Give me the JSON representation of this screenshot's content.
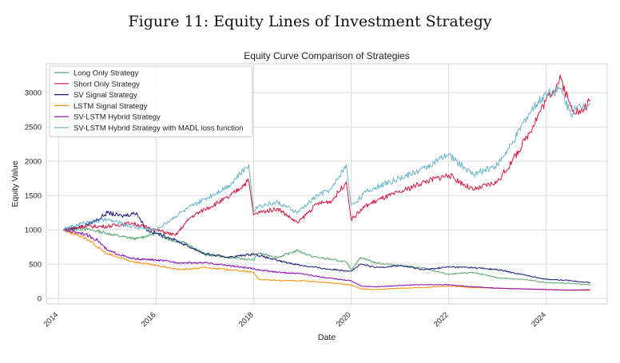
{
  "figure": {
    "caption": "Figure 11: Equity Lines of Investment Strategy"
  },
  "chart_data": {
    "type": "line",
    "title": "Equity Curve Comparison of Strategies",
    "xlabel": "Date",
    "ylabel": "Equity Value",
    "xlim": [
      2013.75,
      2025.25
    ],
    "ylim": [
      -80,
      3420
    ],
    "x_ticks": [
      2014,
      2016,
      2018,
      2020,
      2022,
      2024
    ],
    "x_tick_labels": [
      "2014",
      "2016",
      "2018",
      "2020",
      "2022",
      "2024"
    ],
    "y_ticks": [
      0,
      500,
      1000,
      1500,
      2000,
      2500,
      3000
    ],
    "y_tick_labels": [
      "0",
      "500",
      "1000",
      "1500",
      "2000",
      "2500",
      "3000"
    ],
    "grid": true,
    "legend_position": "top-left",
    "series": [
      {
        "name": "Long Only Strategy",
        "color": "#55a868",
        "x": [
          2014.1,
          2014.5,
          2014.8,
          2015.0,
          2015.3,
          2015.6,
          2016.0,
          2016.3,
          2016.6,
          2017.0,
          2017.5,
          2018.0,
          2018.1,
          2018.5,
          2018.9,
          2019.2,
          2019.5,
          2019.9,
          2020.0,
          2020.2,
          2020.5,
          2021.0,
          2021.5,
          2022.0,
          2022.5,
          2023.0,
          2023.5,
          2024.0,
          2024.5,
          2024.9
        ],
        "y": [
          1000,
          1020,
          980,
          950,
          900,
          870,
          950,
          850,
          820,
          640,
          600,
          560,
          660,
          600,
          700,
          610,
          580,
          530,
          420,
          600,
          520,
          480,
          440,
          350,
          380,
          300,
          280,
          230,
          220,
          200
        ]
      },
      {
        "name": "Short Only Strategy",
        "color": "#dc143c",
        "x": [
          2014.1,
          2014.5,
          2015.0,
          2015.5,
          2016.0,
          2016.4,
          2016.7,
          2017.0,
          2017.5,
          2017.9,
          2018.0,
          2018.1,
          2018.5,
          2018.9,
          2019.3,
          2019.6,
          2019.9,
          2020.0,
          2020.3,
          2020.6,
          2021.0,
          2021.5,
          2022.0,
          2022.5,
          2023.0,
          2023.3,
          2023.6,
          2024.0,
          2024.3,
          2024.5,
          2024.7,
          2024.9
        ],
        "y": [
          1000,
          1050,
          1050,
          1100,
          1000,
          920,
          1180,
          1300,
          1480,
          1720,
          1220,
          1250,
          1310,
          1100,
          1380,
          1420,
          1700,
          1150,
          1350,
          1450,
          1550,
          1700,
          1800,
          1580,
          1700,
          2000,
          2350,
          2900,
          3200,
          2800,
          2700,
          2880
        ]
      },
      {
        "name": "SV Signal Strategy",
        "color": "#1a1a80",
        "x": [
          2014.1,
          2014.5,
          2014.8,
          2015.0,
          2015.3,
          2015.6,
          2015.8,
          2016.0,
          2016.3,
          2016.6,
          2017.0,
          2017.5,
          2018.0,
          2018.5,
          2019.0,
          2019.5,
          2020.0,
          2020.2,
          2020.5,
          2021.0,
          2021.5,
          2022.0,
          2022.5,
          2023.0,
          2023.5,
          2024.0,
          2024.5,
          2024.9
        ],
        "y": [
          1000,
          1050,
          1150,
          1250,
          1200,
          1250,
          1000,
          950,
          880,
          780,
          650,
          600,
          650,
          550,
          480,
          430,
          400,
          500,
          450,
          480,
          420,
          460,
          450,
          420,
          350,
          280,
          260,
          230
        ]
      },
      {
        "name": "LSTM Signal Strategy",
        "color": "#ff8c00",
        "x": [
          2014.1,
          2014.5,
          2014.8,
          2015.0,
          2015.5,
          2016.0,
          2016.5,
          2017.0,
          2017.5,
          2018.0,
          2018.1,
          2018.5,
          2019.0,
          2019.5,
          2020.0,
          2020.2,
          2020.5,
          2021.0,
          2021.5,
          2022.0,
          2022.5,
          2023.0,
          2023.5,
          2024.0,
          2024.5,
          2024.9
        ],
        "y": [
          1000,
          900,
          750,
          650,
          540,
          480,
          420,
          450,
          420,
          380,
          280,
          260,
          260,
          230,
          200,
          140,
          130,
          150,
          160,
          180,
          160,
          150,
          140,
          130,
          120,
          120
        ]
      },
      {
        "name": "SV-LSTM Hybrid Strategy",
        "color": "#8b00b8",
        "x": [
          2014.1,
          2014.5,
          2014.8,
          2015.0,
          2015.5,
          2016.0,
          2016.5,
          2017.0,
          2017.5,
          2018.0,
          2018.5,
          2019.0,
          2019.5,
          2020.0,
          2020.2,
          2020.5,
          2021.0,
          2021.5,
          2022.0,
          2022.5,
          2023.0,
          2023.5,
          2024.0,
          2024.5,
          2024.9
        ],
        "y": [
          1000,
          950,
          850,
          700,
          580,
          560,
          520,
          520,
          480,
          430,
          380,
          360,
          300,
          260,
          180,
          170,
          190,
          200,
          200,
          170,
          150,
          140,
          130,
          120,
          130
        ]
      },
      {
        "name": "SV-LSTM Hybrid Strategy with MADL loss function",
        "color": "#6ab4c8",
        "x": [
          2014.1,
          2014.5,
          2015.0,
          2015.5,
          2016.0,
          2016.5,
          2017.0,
          2017.5,
          2017.9,
          2018.0,
          2018.1,
          2018.5,
          2018.9,
          2019.3,
          2019.6,
          2019.9,
          2020.0,
          2020.3,
          2020.6,
          2021.0,
          2021.5,
          2022.0,
          2022.5,
          2023.0,
          2023.3,
          2023.6,
          2024.0,
          2024.3,
          2024.5,
          2024.7,
          2024.9
        ],
        "y": [
          1000,
          1100,
          1150,
          1050,
          1000,
          1250,
          1450,
          1650,
          1950,
          1280,
          1350,
          1400,
          1250,
          1500,
          1600,
          1950,
          1350,
          1550,
          1650,
          1750,
          1900,
          2100,
          1800,
          1950,
          2250,
          2650,
          3000,
          3050,
          2700,
          2800,
          2850
        ]
      }
    ]
  }
}
